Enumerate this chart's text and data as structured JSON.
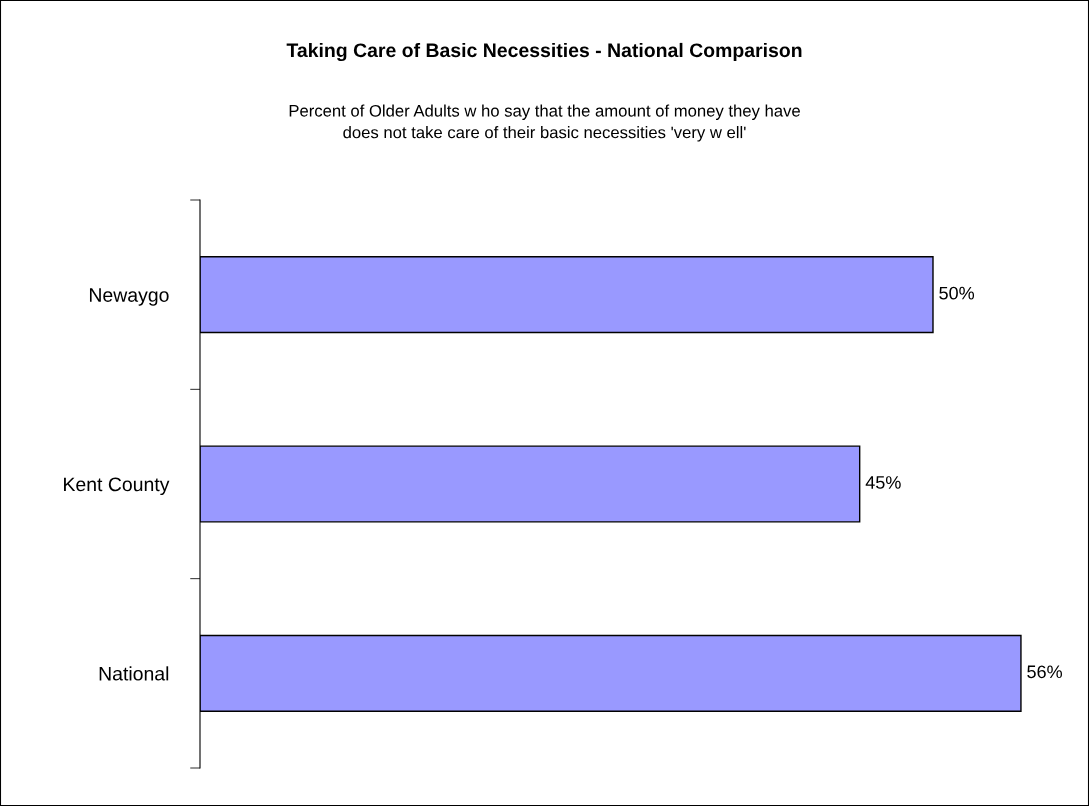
{
  "chart_data": {
    "type": "bar",
    "orientation": "horizontal",
    "title": "Taking Care of Basic Necessities - National Comparison",
    "subtitle": "Percent of Older Adults w ho say that the amount of money they have\ndoes not take care of their basic necessities 'very w ell'",
    "categories": [
      "Newaygo",
      "Kent County",
      "National"
    ],
    "values": [
      50,
      45,
      56
    ],
    "value_labels": [
      "50%",
      "45%",
      "56%"
    ],
    "color": "#9999ff",
    "grid": false,
    "legend": false
  }
}
